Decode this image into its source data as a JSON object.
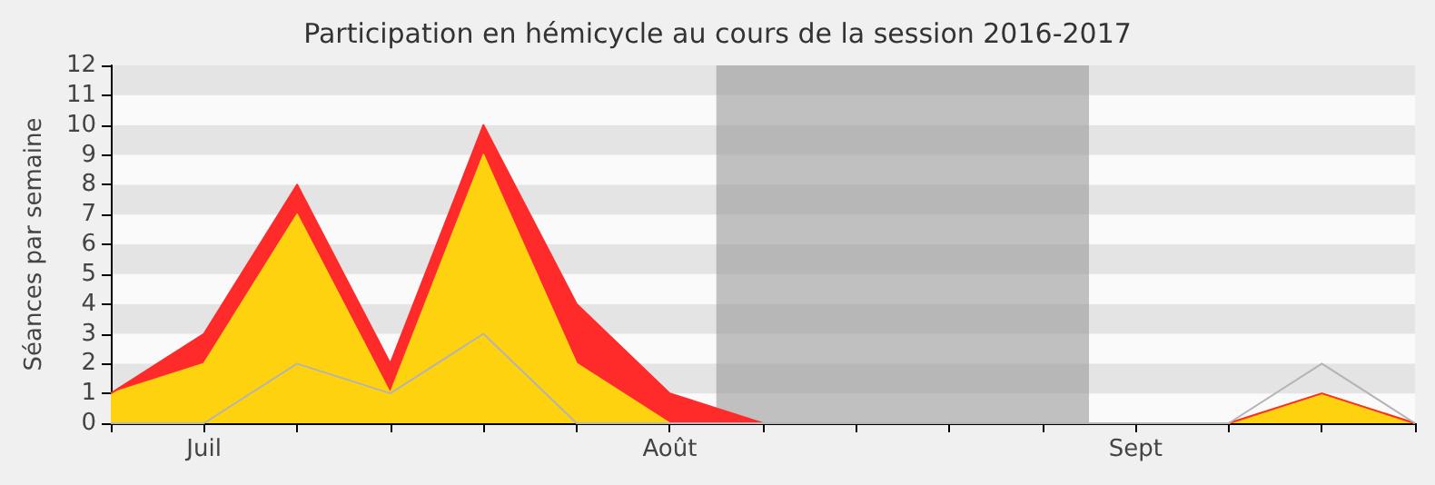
{
  "chart_data": {
    "type": "area",
    "title": "Participation en hémicycle au cours de la session 2016-2017",
    "ylabel": "Séances par semaine",
    "stacked": true,
    "categories": [
      null,
      "Juil",
      null,
      null,
      null,
      null,
      "Août",
      null,
      null,
      null,
      null,
      "Sept",
      null,
      null,
      null
    ],
    "series": [
      {
        "color": "#ffd20f",
        "values": [
          1,
          2,
          7,
          1,
          9,
          2,
          0,
          0,
          0,
          0,
          0,
          0,
          0,
          1,
          0
        ]
      },
      {
        "color": "#ff2a2a",
        "values": [
          0,
          1,
          1,
          1,
          1,
          2,
          1,
          0,
          0,
          0,
          0,
          0,
          0,
          0,
          0
        ]
      },
      {
        "type": "line",
        "color": "#b4b4b4",
        "values": [
          0,
          0,
          2,
          1,
          3,
          0,
          0,
          0,
          0,
          0,
          0,
          0,
          0,
          2,
          0
        ]
      }
    ],
    "ylim": [
      0,
      12
    ],
    "yticks": [
      0,
      1,
      2,
      3,
      4,
      5,
      6,
      7,
      8,
      9,
      10,
      11,
      12
    ],
    "marker": "none"
  }
}
